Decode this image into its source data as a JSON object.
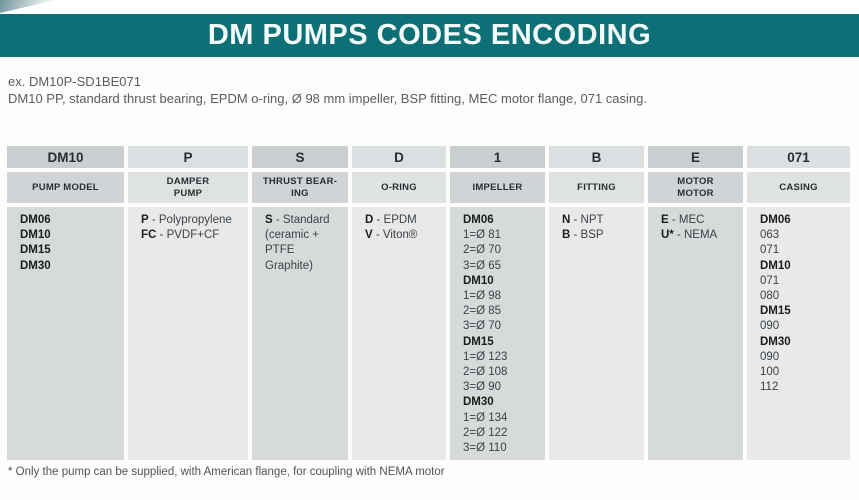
{
  "page": {
    "title": "DM PUMPS CODES ENCODING",
    "example_code": "ex. DM10P-SD1BE071",
    "example_description": "DM10 PP, standard thrust bearing, EPDM o-ring, Ø 98 mm impeller, BSP fitting, MEC motor flange, 071 casing.",
    "footnote": "* Only the pump can be supplied, with American flange, for coupling with NEMA motor"
  },
  "colors": {
    "accent_teal": "#0e7077",
    "title_text": "#f3fbfb",
    "code_cell_dark": "#caced1",
    "code_cell_light": "#dcdfe1",
    "body_cell_dark": "#d7dadb",
    "body_cell_light": "#e7e9ea"
  },
  "table": {
    "columns": [
      {
        "code": "DM10",
        "label": "PUMP MODEL",
        "shade": "dark",
        "content": [
          {
            "b": "DM06"
          },
          {
            "b": "DM10"
          },
          {
            "b": "DM15"
          },
          {
            "b": "DM30"
          }
        ]
      },
      {
        "code": "P",
        "label": "DAMPER\nPUMP",
        "shade": "light",
        "content": [
          {
            "b": "P",
            "t": " - Polypropylene"
          },
          {
            "b": "FC",
            "t": " - PVDF+CF"
          }
        ]
      },
      {
        "code": "S",
        "label": "THRUST BEAR-\nING",
        "shade": "dark",
        "content": [
          {
            "b": "S",
            "t": " - Standard"
          },
          {
            "t": "(ceramic +"
          },
          {
            "t": "PTFE Graphite)"
          }
        ]
      },
      {
        "code": "D",
        "label": "O-RING",
        "shade": "light",
        "content": [
          {
            "b": "D",
            "t": " - EPDM"
          },
          {
            "b": "V",
            "t": " - Viton®"
          }
        ]
      },
      {
        "code": "1",
        "label": "IMPELLER",
        "shade": "dark",
        "content": [
          {
            "b": "DM06"
          },
          {
            "t": "1=Ø 81"
          },
          {
            "t": "2=Ø 70"
          },
          {
            "t": "3=Ø 65"
          },
          {
            "b": "DM10"
          },
          {
            "t": "1=Ø 98"
          },
          {
            "t": "2=Ø 85"
          },
          {
            "t": "3=Ø 70"
          },
          {
            "b": "DM15"
          },
          {
            "t": "1=Ø 123"
          },
          {
            "t": "2=Ø 108"
          },
          {
            "t": "3=Ø 90"
          },
          {
            "b": "DM30"
          },
          {
            "t": "1=Ø 134"
          },
          {
            "t": "2=Ø 122"
          },
          {
            "t": "3=Ø 110"
          }
        ]
      },
      {
        "code": "B",
        "label": "FITTING",
        "shade": "light",
        "content": [
          {
            "b": "N",
            "t": " - NPT"
          },
          {
            "b": "B",
            "t": " - BSP"
          }
        ]
      },
      {
        "code": "E",
        "label": "MOTOR\nMOTOR",
        "shade": "dark",
        "content": [
          {
            "b": "E",
            "t": " - MEC"
          },
          {
            "b": "U*",
            "t": " - NEMA"
          }
        ]
      },
      {
        "code": "071",
        "label": "CASING",
        "shade": "light",
        "content": [
          {
            "b": "DM06"
          },
          {
            "t": "063"
          },
          {
            "t": "071"
          },
          {
            "b": "DM10"
          },
          {
            "t": "071"
          },
          {
            "t": "080"
          },
          {
            "b": "DM15"
          },
          {
            "t": "090"
          },
          {
            "b": "DM30"
          },
          {
            "t": "090"
          },
          {
            "t": "100"
          },
          {
            "t": "112"
          }
        ]
      }
    ]
  }
}
